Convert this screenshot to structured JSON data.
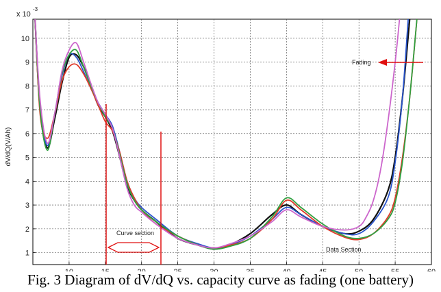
{
  "chart_data": {
    "type": "line",
    "xlabel": "",
    "ylabel": "dV/dQ(V/Ah)",
    "scale_label": "x 10",
    "scale_exponent": "-3",
    "xlim": [
      5,
      60
    ],
    "ylim": [
      0.5,
      10.8
    ],
    "xticks": [
      10,
      15,
      20,
      25,
      30,
      35,
      40,
      45,
      50,
      55,
      60
    ],
    "yticks": [
      1,
      2,
      3,
      4,
      5,
      6,
      7,
      8,
      9,
      10
    ],
    "grid": true,
    "series": [
      {
        "name": "black",
        "color": "#111111",
        "x": [
          5.3,
          6,
          7,
          8,
          9,
          10,
          11,
          12,
          13,
          14,
          15,
          16,
          17,
          18,
          19,
          20,
          22,
          25,
          28,
          30,
          32,
          35,
          38,
          40,
          42,
          45,
          48,
          50,
          52,
          54,
          55,
          56,
          57
        ],
        "y": [
          10.8,
          7.0,
          5.4,
          6.6,
          8.1,
          9.2,
          9.3,
          8.8,
          8.0,
          7.2,
          6.7,
          6.1,
          5.0,
          3.8,
          3.2,
          2.8,
          2.3,
          1.6,
          1.3,
          1.15,
          1.3,
          1.8,
          2.6,
          3.0,
          2.6,
          2.1,
          1.8,
          1.9,
          2.4,
          3.6,
          5.0,
          7.5,
          10.8
        ]
      },
      {
        "name": "blue",
        "color": "#2a55cc",
        "x": [
          5.3,
          6,
          7,
          8,
          9,
          10,
          11,
          12,
          13,
          14,
          15,
          16,
          17,
          18,
          19,
          20,
          22,
          25,
          28,
          30,
          32,
          35,
          38,
          40,
          42,
          45,
          48,
          50,
          52,
          54,
          55,
          56,
          56.8
        ],
        "y": [
          10.8,
          7.1,
          5.5,
          6.8,
          8.4,
          9.3,
          9.2,
          8.6,
          7.9,
          7.3,
          6.8,
          6.3,
          5.2,
          4.0,
          3.3,
          2.9,
          2.4,
          1.7,
          1.35,
          1.2,
          1.3,
          1.7,
          2.4,
          2.9,
          2.6,
          2.1,
          1.8,
          1.8,
          2.3,
          3.3,
          4.8,
          7.5,
          10.8
        ]
      },
      {
        "name": "red",
        "color": "#e03a2a",
        "x": [
          5.3,
          6,
          7,
          8,
          9,
          10,
          11,
          12,
          13,
          14,
          15,
          16,
          17,
          18,
          19,
          20,
          22,
          25,
          28,
          30,
          32,
          35,
          38,
          40,
          42,
          45,
          48,
          50,
          52,
          54,
          55,
          56,
          57,
          58
        ],
        "y": [
          10.8,
          6.8,
          5.8,
          6.8,
          8.2,
          8.8,
          8.9,
          8.5,
          7.9,
          7.2,
          6.5,
          6.1,
          5.2,
          4.0,
          3.3,
          2.8,
          2.2,
          1.7,
          1.3,
          1.2,
          1.3,
          1.6,
          2.4,
          3.2,
          2.8,
          2.1,
          1.65,
          1.55,
          1.8,
          2.5,
          3.3,
          5.0,
          7.5,
          10.8
        ]
      },
      {
        "name": "green",
        "color": "#30a040",
        "x": [
          5.3,
          6,
          7,
          8,
          9,
          10,
          11,
          12,
          13,
          14,
          15,
          16,
          17,
          18,
          19,
          20,
          22,
          25,
          28,
          30,
          32,
          35,
          38,
          40,
          42,
          45,
          48,
          50,
          52,
          54,
          55,
          56,
          57,
          58
        ],
        "y": [
          10.8,
          7.0,
          5.3,
          6.8,
          8.5,
          9.3,
          9.5,
          8.8,
          8.0,
          7.3,
          6.7,
          6.2,
          5.1,
          3.9,
          3.2,
          2.8,
          2.3,
          1.7,
          1.3,
          1.15,
          1.25,
          1.6,
          2.5,
          3.3,
          2.9,
          2.2,
          1.7,
          1.6,
          1.8,
          2.4,
          3.1,
          4.8,
          7.5,
          10.8
        ]
      },
      {
        "name": "magenta",
        "color": "#cc66cc",
        "x": [
          5.3,
          6,
          7,
          8,
          9,
          10,
          11,
          12,
          13,
          14,
          15,
          16,
          17,
          18,
          19,
          20,
          22,
          25,
          28,
          30,
          32,
          35,
          38,
          40,
          42,
          45,
          48,
          50,
          51,
          52,
          53,
          54,
          55,
          55.6
        ],
        "y": [
          10.8,
          7.4,
          5.6,
          6.8,
          8.6,
          9.5,
          9.8,
          9.0,
          8.1,
          7.3,
          6.8,
          6.2,
          5.0,
          3.7,
          3.0,
          2.7,
          2.2,
          1.6,
          1.3,
          1.2,
          1.35,
          1.7,
          2.3,
          2.8,
          2.5,
          2.1,
          1.95,
          2.1,
          2.5,
          3.2,
          4.5,
          6.5,
          9.0,
          10.8
        ]
      }
    ],
    "annotations": {
      "fading_label": "Fading",
      "curve_section_label": "Curve section",
      "data_section_label": "Data Section"
    }
  },
  "caption": "Fig. 3 Diagram of dV/dQ vs. capacity curve as fading (one battery)"
}
